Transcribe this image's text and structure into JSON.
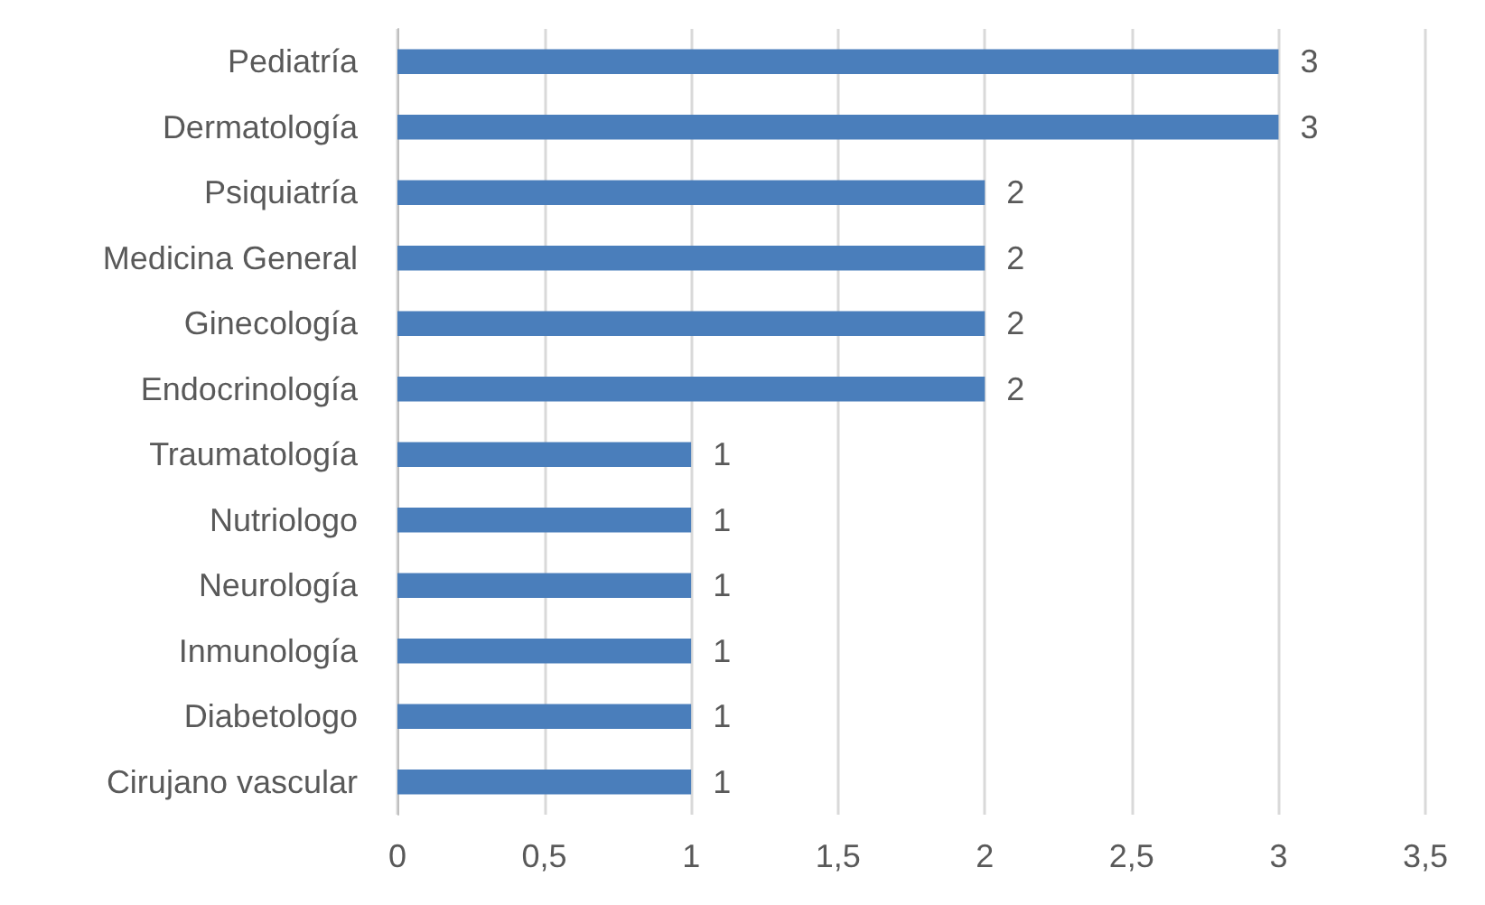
{
  "chart_data": {
    "type": "bar",
    "orientation": "horizontal",
    "categories": [
      "Pediatría",
      "Dermatología",
      "Psiquiatría",
      "Medicina General",
      "Ginecología",
      "Endocrinología",
      "Traumatología",
      "Nutriologo",
      "Neurología",
      "Inmunología",
      "Diabetologo",
      "Cirujano vascular"
    ],
    "values": [
      3,
      3,
      2,
      2,
      2,
      2,
      1,
      1,
      1,
      1,
      1,
      1
    ],
    "color": "#4a7ebb",
    "xlim": [
      0,
      3.5
    ],
    "xticks": [
      0,
      {
        "value": 0.5,
        "label": "0,5"
      },
      1,
      {
        "value": 1.5,
        "label": "1,5"
      },
      2,
      {
        "value": 2.5,
        "label": "2,5"
      },
      3,
      {
        "value": 3.5,
        "label": "3,5"
      }
    ],
    "grid": "x",
    "data_labels": true
  }
}
